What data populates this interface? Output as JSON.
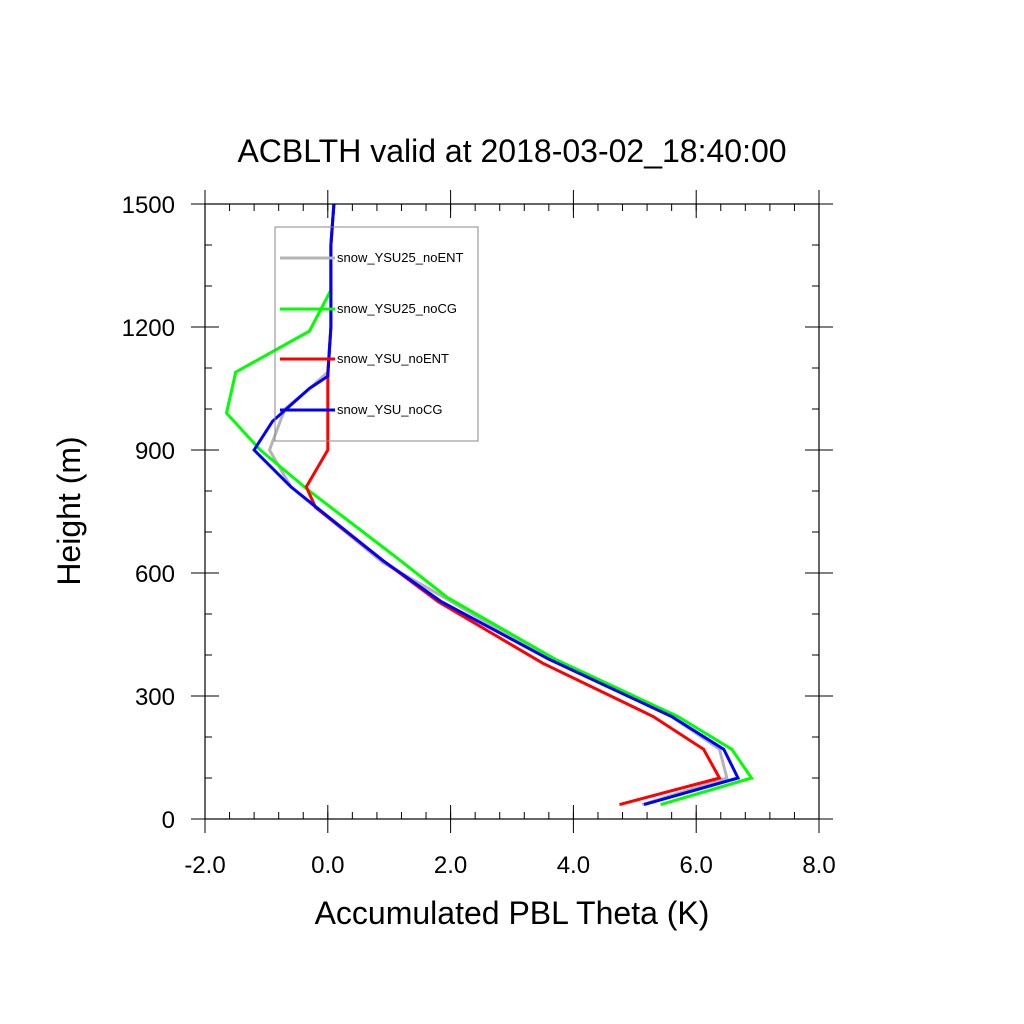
{
  "chart_data": {
    "type": "line",
    "title": "ACBLTH valid at 2018-03-02_18:40:00",
    "xlabel": "Accumulated PBL Theta (K)",
    "ylabel": "Height (m)",
    "xlim": [
      -2.0,
      8.0
    ],
    "ylim": [
      0,
      1500
    ],
    "xticks": [
      -2.0,
      0.0,
      2.0,
      4.0,
      6.0,
      8.0
    ],
    "xtick_labels": [
      "-2.0",
      "0.0",
      "2.0",
      "4.0",
      "6.0",
      "8.0"
    ],
    "yticks": [
      0,
      300,
      600,
      900,
      1200,
      1500
    ],
    "ytick_labels": [
      "0",
      "300",
      "600",
      "900",
      "1200",
      "1500"
    ],
    "grid": false,
    "legend_placement": "top-left",
    "series": [
      {
        "name": "snow_YSU25_noENT",
        "color": "#b4b4b4",
        "points": [
          [
            5.12,
            35
          ],
          [
            6.5,
            100
          ],
          [
            6.38,
            170
          ],
          [
            5.6,
            250
          ],
          [
            3.6,
            390
          ],
          [
            1.9,
            540
          ],
          [
            0.9,
            625
          ],
          [
            -0.2,
            760
          ],
          [
            -0.6,
            810
          ],
          [
            -0.95,
            900
          ],
          [
            -0.7,
            1000
          ],
          [
            -0.3,
            1050
          ],
          [
            0.0,
            1090
          ],
          [
            0.05,
            1200
          ],
          [
            0.05,
            1400
          ],
          [
            0.1,
            1500
          ]
        ]
      },
      {
        "name": "snow_YSU25_noCG",
        "color": "#00ff00",
        "points": [
          [
            5.42,
            35
          ],
          [
            6.9,
            100
          ],
          [
            6.58,
            170
          ],
          [
            5.7,
            250
          ],
          [
            3.7,
            390
          ],
          [
            1.95,
            540
          ],
          [
            1.1,
            640
          ],
          [
            -0.3,
            800
          ],
          [
            -1.1,
            900
          ],
          [
            -1.65,
            990
          ],
          [
            -1.5,
            1090
          ],
          [
            -0.3,
            1190
          ],
          [
            0.05,
            1290
          ],
          [
            0.05,
            1400
          ],
          [
            0.1,
            1500
          ]
        ]
      },
      {
        "name": "snow_YSU_noENT",
        "color": "#ff0000",
        "points": [
          [
            4.75,
            35
          ],
          [
            6.38,
            100
          ],
          [
            6.12,
            170
          ],
          [
            5.3,
            250
          ],
          [
            3.5,
            380
          ],
          [
            1.8,
            530
          ],
          [
            0.9,
            630
          ],
          [
            -0.2,
            760
          ],
          [
            -0.35,
            810
          ],
          [
            0.0,
            900
          ],
          [
            0.0,
            1090
          ],
          [
            0.05,
            1200
          ],
          [
            0.05,
            1400
          ],
          [
            0.1,
            1500
          ]
        ]
      },
      {
        "name": "snow_YSU_noCG",
        "color": "#0000ff",
        "points": [
          [
            5.15,
            35
          ],
          [
            6.68,
            100
          ],
          [
            6.45,
            170
          ],
          [
            5.6,
            250
          ],
          [
            3.6,
            390
          ],
          [
            1.85,
            530
          ],
          [
            0.9,
            630
          ],
          [
            -0.1,
            750
          ],
          [
            -0.6,
            810
          ],
          [
            -1.2,
            900
          ],
          [
            -0.9,
            970
          ],
          [
            -0.3,
            1050
          ],
          [
            0.0,
            1080
          ],
          [
            0.05,
            1200
          ],
          [
            0.05,
            1400
          ],
          [
            0.1,
            1500
          ]
        ]
      }
    ]
  }
}
